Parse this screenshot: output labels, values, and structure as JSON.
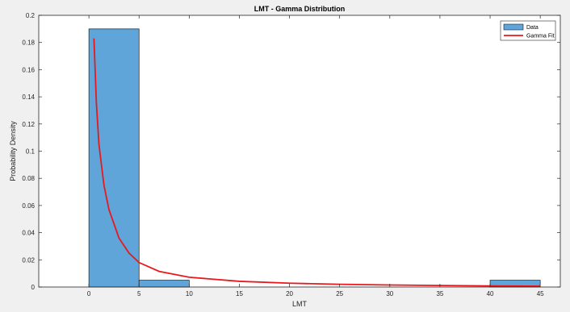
{
  "chart_data": {
    "type": "bar",
    "title": "LMT - Gamma Distribution",
    "xlabel": "LMT",
    "ylabel": "Probability Density",
    "xlim": [
      -5,
      47
    ],
    "ylim": [
      0,
      0.2
    ],
    "xticks": [
      0,
      5,
      10,
      15,
      20,
      25,
      30,
      35,
      40,
      45
    ],
    "yticks": [
      0,
      0.02,
      0.04,
      0.06,
      0.08,
      0.1,
      0.12,
      0.14,
      0.16,
      0.18,
      0.2
    ],
    "xtick_labels": [
      "0",
      "5",
      "10",
      "15",
      "20",
      "25",
      "30",
      "35",
      "40",
      "45"
    ],
    "ytick_labels": [
      "0",
      "0.02",
      "0.04",
      "0.06",
      "0.08",
      "0.1",
      "0.12",
      "0.14",
      "0.16",
      "0.18",
      "0.2"
    ],
    "grid": false,
    "legend_position": "top-right",
    "series": [
      {
        "name": "Data",
        "type": "histogram",
        "color": "#5fa5d9",
        "bins": [
          {
            "x0": 0,
            "x1": 5,
            "value": 0.19
          },
          {
            "x0": 5,
            "x1": 10,
            "value": 0.005
          },
          {
            "x0": 40,
            "x1": 45,
            "value": 0.005
          }
        ]
      },
      {
        "name": "Gamma Fit",
        "type": "line",
        "color": "#e8191c",
        "x": [
          0.5,
          0.75,
          1,
          1.5,
          2,
          3,
          4,
          5,
          7,
          10,
          15,
          20,
          25,
          30,
          35,
          40,
          45
        ],
        "y": [
          0.183,
          0.135,
          0.105,
          0.075,
          0.057,
          0.036,
          0.025,
          0.018,
          0.0115,
          0.0072,
          0.0042,
          0.0028,
          0.002,
          0.0015,
          0.0011,
          0.0008,
          0.0006
        ]
      }
    ]
  }
}
